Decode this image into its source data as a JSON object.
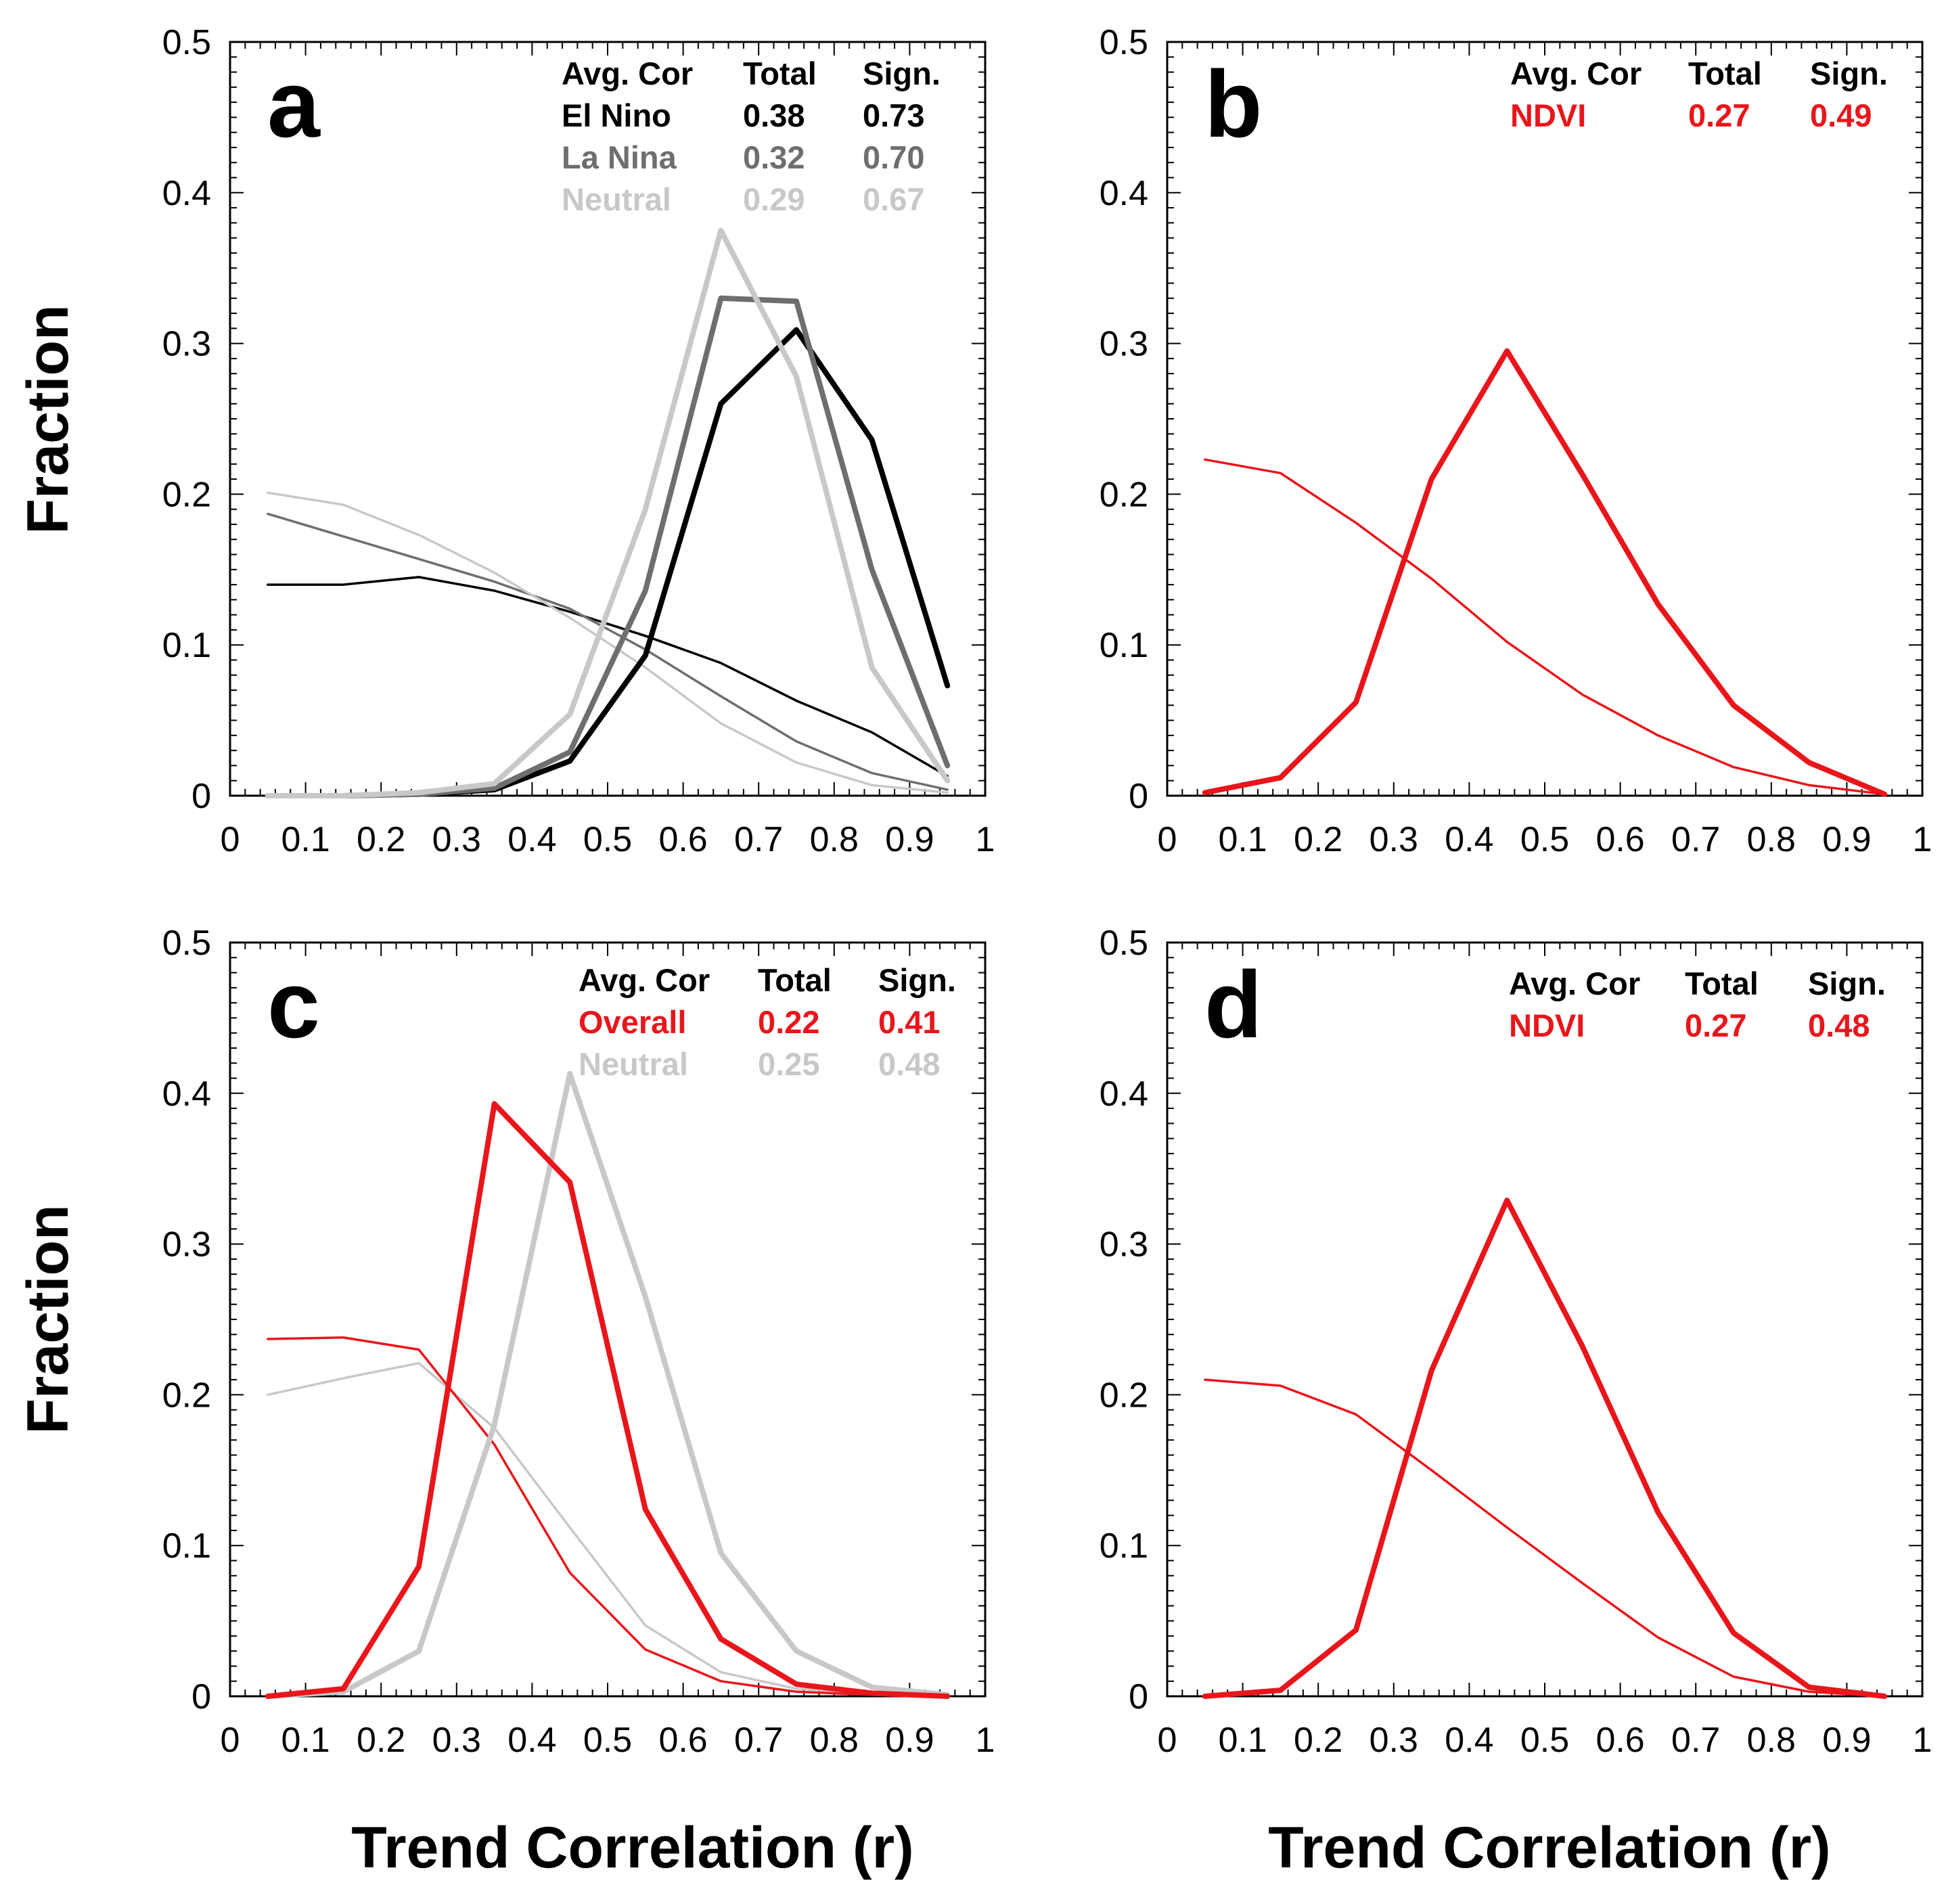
{
  "figure": {
    "ylabel": "Fraction",
    "xlabel": "Trend Correlation (r)"
  },
  "chart_data": [
    {
      "type": "line",
      "panel": "a",
      "xlabel": "Trend Correlation (r)",
      "ylabel": "Fraction",
      "xlim": [
        0,
        1
      ],
      "ylim": [
        0,
        0.5
      ],
      "xticks": [
        "0",
        "0.1",
        "0.2",
        "0.3",
        "0.4",
        "0.5",
        "0.6",
        "0.7",
        "0.8",
        "0.9",
        "1"
      ],
      "yticks": [
        "0",
        "0.1",
        "0.2",
        "0.3",
        "0.4",
        "0.5"
      ],
      "x": [
        0.05,
        0.15,
        0.25,
        0.35,
        0.45,
        0.55,
        0.65,
        0.75,
        0.85,
        0.95
      ],
      "series": [
        {
          "name": "El Nino (thin)",
          "color": "#000000",
          "weight": "thin",
          "values": [
            0.14,
            0.14,
            0.145,
            0.136,
            0.122,
            0.106,
            0.088,
            0.063,
            0.042,
            0.013
          ]
        },
        {
          "name": "La Nina (thin)",
          "color": "#6e6e6e",
          "weight": "thin",
          "values": [
            0.187,
            0.172,
            0.157,
            0.142,
            0.124,
            0.097,
            0.066,
            0.036,
            0.015,
            0.004
          ]
        },
        {
          "name": "Neutral (thin)",
          "color": "#c8c8c8",
          "weight": "thin",
          "values": [
            0.201,
            0.193,
            0.173,
            0.148,
            0.118,
            0.085,
            0.048,
            0.022,
            0.007,
            0.002
          ]
        },
        {
          "name": "El Nino (thick)",
          "color": "#000000",
          "weight": "thick",
          "values": [
            0.0,
            0.0,
            0.001,
            0.004,
            0.023,
            0.093,
            0.26,
            0.309,
            0.236,
            0.073
          ]
        },
        {
          "name": "La Nina (thick)",
          "color": "#6e6e6e",
          "weight": "thick",
          "values": [
            0.0,
            0.0,
            0.001,
            0.005,
            0.029,
            0.136,
            0.33,
            0.328,
            0.15,
            0.02
          ]
        },
        {
          "name": "Neutral (thick)",
          "color": "#c8c8c8",
          "weight": "thick",
          "values": [
            0.0,
            0.0,
            0.002,
            0.008,
            0.054,
            0.19,
            0.375,
            0.278,
            0.085,
            0.01
          ]
        }
      ],
      "legend": {
        "headers": [
          "Avg. Cor",
          "Total",
          "Sign."
        ],
        "rows": [
          {
            "label": "El Nino",
            "total": "0.38",
            "sign": "0.73",
            "color": "#000000"
          },
          {
            "label": "La Nina",
            "total": "0.32",
            "sign": "0.70",
            "color": "#6e6e6e"
          },
          {
            "label": "Neutral",
            "total": "0.29",
            "sign": "0.67",
            "color": "#c8c8c8"
          }
        ]
      }
    },
    {
      "type": "line",
      "panel": "b",
      "xlabel": "Trend Correlation (r)",
      "ylabel": "Fraction",
      "xlim": [
        0,
        1
      ],
      "ylim": [
        0,
        0.5
      ],
      "xticks": [
        "0",
        "0.1",
        "0.2",
        "0.3",
        "0.4",
        "0.5",
        "0.6",
        "0.7",
        "0.8",
        "0.9",
        "1"
      ],
      "yticks": [
        "0",
        "0.1",
        "0.2",
        "0.3",
        "0.4",
        "0.5"
      ],
      "x": [
        0.05,
        0.15,
        0.25,
        0.35,
        0.45,
        0.55,
        0.65,
        0.75,
        0.85,
        0.95
      ],
      "series": [
        {
          "name": "NDVI (thin)",
          "color": "#e8161b",
          "weight": "thin",
          "values": [
            0.223,
            0.214,
            0.181,
            0.144,
            0.102,
            0.067,
            0.04,
            0.019,
            0.007,
            0.001
          ]
        },
        {
          "name": "NDVI (thick)",
          "color": "#e8161b",
          "weight": "thick",
          "values": [
            0.002,
            0.012,
            0.062,
            0.21,
            0.295,
            0.213,
            0.127,
            0.06,
            0.022,
            0.001
          ]
        }
      ],
      "legend": {
        "headers": [
          "Avg. Cor",
          "Total",
          "Sign."
        ],
        "rows": [
          {
            "label": "NDVI",
            "total": "0.27",
            "sign": "0.49",
            "color": "#e8161b"
          }
        ]
      }
    },
    {
      "type": "line",
      "panel": "c",
      "xlabel": "Trend Correlation (r)",
      "ylabel": "Fraction",
      "xlim": [
        0,
        1
      ],
      "ylim": [
        0,
        0.5
      ],
      "xticks": [
        "0",
        "0.1",
        "0.2",
        "0.3",
        "0.4",
        "0.5",
        "0.6",
        "0.7",
        "0.8",
        "0.9",
        "1"
      ],
      "yticks": [
        "0",
        "0.1",
        "0.2",
        "0.3",
        "0.4",
        "0.5"
      ],
      "x": [
        0.05,
        0.15,
        0.25,
        0.35,
        0.45,
        0.55,
        0.65,
        0.75,
        0.85,
        0.95
      ],
      "series": [
        {
          "name": "Neutral (thin)",
          "color": "#c8c8c8",
          "weight": "thin",
          "values": [
            0.2,
            0.211,
            0.221,
            0.178,
            0.112,
            0.047,
            0.016,
            0.005,
            0.002,
            0.0
          ]
        },
        {
          "name": "Overall (thin)",
          "color": "#e8161b",
          "weight": "thin",
          "values": [
            0.237,
            0.238,
            0.23,
            0.167,
            0.082,
            0.031,
            0.01,
            0.003,
            0.001,
            0.0
          ]
        },
        {
          "name": "Neutral (thick)",
          "color": "#c8c8c8",
          "weight": "thick",
          "values": [
            0.0,
            0.003,
            0.03,
            0.18,
            0.413,
            0.265,
            0.095,
            0.03,
            0.006,
            0.001
          ]
        },
        {
          "name": "Overall (thick)",
          "color": "#e8161b",
          "weight": "thick",
          "values": [
            0.0,
            0.005,
            0.086,
            0.393,
            0.341,
            0.124,
            0.038,
            0.008,
            0.002,
            0.0
          ]
        }
      ],
      "legend": {
        "headers": [
          "Avg. Cor",
          "Total",
          "Sign."
        ],
        "rows": [
          {
            "label": "Overall",
            "total": "0.22",
            "sign": "0.41",
            "color": "#e8161b"
          },
          {
            "label": "Neutral",
            "total": "0.25",
            "sign": "0.48",
            "color": "#c8c8c8"
          }
        ]
      }
    },
    {
      "type": "line",
      "panel": "d",
      "xlabel": "Trend Correlation (r)",
      "ylabel": "Fraction",
      "xlim": [
        0,
        1
      ],
      "ylim": [
        0,
        0.5
      ],
      "xticks": [
        "0",
        "0.1",
        "0.2",
        "0.3",
        "0.4",
        "0.5",
        "0.6",
        "0.7",
        "0.8",
        "0.9",
        "1"
      ],
      "yticks": [
        "0",
        "0.1",
        "0.2",
        "0.3",
        "0.4",
        "0.5"
      ],
      "x": [
        0.05,
        0.15,
        0.25,
        0.35,
        0.45,
        0.55,
        0.65,
        0.75,
        0.85,
        0.95
      ],
      "series": [
        {
          "name": "NDVI (thin)",
          "color": "#e8161b",
          "weight": "thin",
          "values": [
            0.21,
            0.206,
            0.187,
            0.15,
            0.112,
            0.075,
            0.039,
            0.013,
            0.003,
            0.0
          ]
        },
        {
          "name": "NDVI (thick)",
          "color": "#e8161b",
          "weight": "thick",
          "values": [
            0.0,
            0.004,
            0.044,
            0.216,
            0.329,
            0.232,
            0.122,
            0.042,
            0.006,
            0.0
          ]
        }
      ],
      "legend": {
        "headers": [
          "Avg. Cor",
          "Total",
          "Sign."
        ],
        "rows": [
          {
            "label": "NDVI",
            "total": "0.27",
            "sign": "0.48",
            "color": "#e8161b"
          }
        ]
      }
    }
  ]
}
